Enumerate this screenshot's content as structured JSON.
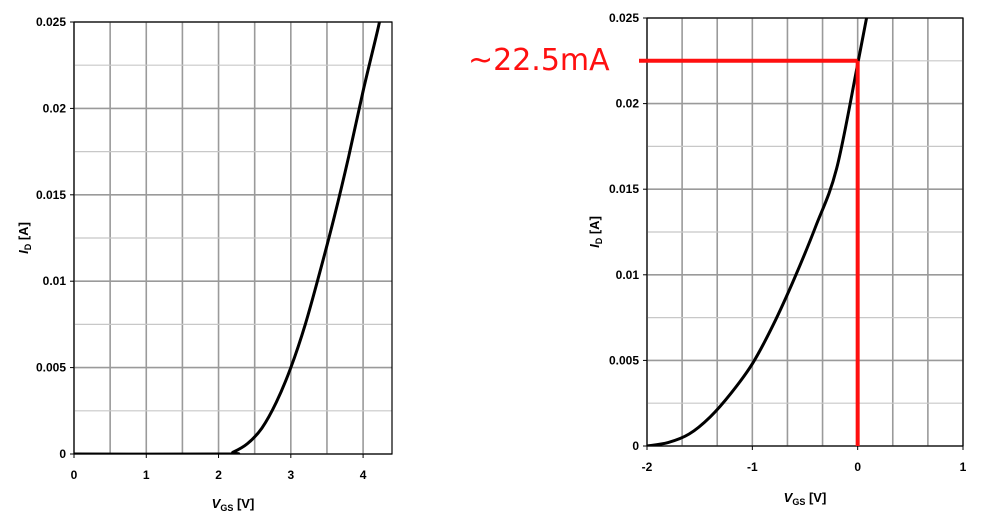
{
  "chart_data": [
    {
      "type": "line",
      "title": "",
      "xlabel": {
        "main": "V",
        "sub": "GS",
        "unit": " [V]"
      },
      "ylabel": {
        "main": "I",
        "sub": "D",
        "unit": " [A]"
      },
      "xlim": [
        0,
        4.4
      ],
      "ylim": [
        0,
        0.025
      ],
      "grid": true,
      "x_ticks": [
        0,
        1,
        2,
        3,
        4
      ],
      "x_tick_labels": [
        "0",
        "1",
        "2",
        "3",
        "4"
      ],
      "y_ticks": [
        0,
        0.005,
        0.01,
        0.015,
        0.02,
        0.025
      ],
      "y_tick_labels": [
        "0",
        "0.005",
        "0.01",
        "0.015",
        "0.02",
        "0.025"
      ],
      "line_color": "#000000",
      "series": [
        {
          "x": [
            0,
            2.1,
            2.2,
            2.4,
            2.6,
            2.8,
            3.0,
            3.2,
            3.4,
            3.6,
            3.8,
            4.0,
            4.2,
            4.25
          ],
          "y": [
            0,
            0,
            0.0001,
            0.0006,
            0.0015,
            0.003,
            0.005,
            0.0075,
            0.0105,
            0.0137,
            0.0172,
            0.021,
            0.0245,
            0.0255
          ]
        }
      ]
    },
    {
      "type": "line",
      "title": "",
      "xlabel": {
        "main": "V",
        "sub": "GS",
        "unit": " [V]"
      },
      "ylabel": {
        "main": "I",
        "sub": "D",
        "unit": " [A]"
      },
      "xlim": [
        -2,
        1
      ],
      "ylim": [
        0,
        0.025
      ],
      "grid": true,
      "x_ticks": [
        -2,
        -1,
        0,
        1
      ],
      "x_tick_labels": [
        "-2",
        "-1",
        "0",
        "1"
      ],
      "y_ticks": [
        0,
        0.005,
        0.01,
        0.015,
        0.02,
        0.025
      ],
      "y_tick_labels": [
        "0",
        "0.005",
        "0.01",
        "0.015",
        "0.02",
        "0.025"
      ],
      "line_color": "#000000",
      "series": [
        {
          "x": [
            -2.0,
            -1.8,
            -1.6,
            -1.4,
            -1.2,
            -1.0,
            -0.8,
            -0.6,
            -0.4,
            -0.2,
            0.0,
            0.1
          ],
          "y": [
            0,
            0.0002,
            0.0007,
            0.0017,
            0.0031,
            0.0048,
            0.0071,
            0.0098,
            0.0128,
            0.0162,
            0.0223,
            0.0255
          ]
        }
      ],
      "annotation": {
        "text": "~22.5mA",
        "x": 0,
        "y": 0.0225,
        "color": "#ff1010"
      }
    }
  ]
}
